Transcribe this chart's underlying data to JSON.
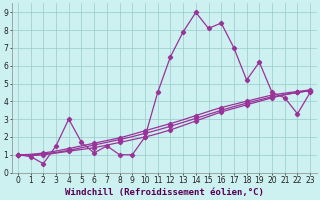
{
  "xlabel": "Windchill (Refroidissement éolien,°C)",
  "background_color": "#cdf0f0",
  "grid_color": "#99cccc",
  "line_color": "#993399",
  "xlim": [
    -0.5,
    23.5
  ],
  "ylim": [
    0,
    9.5
  ],
  "xticks": [
    0,
    1,
    2,
    3,
    4,
    5,
    6,
    7,
    8,
    9,
    10,
    11,
    12,
    13,
    14,
    15,
    16,
    17,
    18,
    19,
    20,
    21,
    22,
    23
  ],
  "yticks": [
    0,
    1,
    2,
    3,
    4,
    5,
    6,
    7,
    8,
    9
  ],
  "line1_x": [
    0,
    1,
    2,
    3,
    4,
    5,
    6,
    7,
    8,
    9,
    10,
    11,
    12,
    13,
    14,
    15,
    16,
    17,
    18,
    19,
    20,
    21,
    22,
    23
  ],
  "line1_y": [
    1.0,
    0.9,
    0.5,
    1.5,
    3.0,
    1.7,
    1.1,
    1.5,
    1.0,
    1.0,
    2.0,
    4.5,
    6.5,
    7.9,
    9.0,
    8.1,
    8.4,
    7.0,
    5.2,
    6.2,
    4.5,
    4.2,
    3.3,
    4.5
  ],
  "line2_x": [
    0,
    2,
    4,
    6,
    8,
    10,
    12,
    14,
    16,
    18,
    20,
    22,
    23
  ],
  "line2_y": [
    1.0,
    1.0,
    1.2,
    1.4,
    1.7,
    2.0,
    2.4,
    2.9,
    3.4,
    3.8,
    4.2,
    4.5,
    4.6
  ],
  "line3_x": [
    0,
    2,
    4,
    6,
    8,
    10,
    12,
    14,
    16,
    18,
    20,
    22,
    23
  ],
  "line3_y": [
    1.0,
    1.05,
    1.25,
    1.55,
    1.85,
    2.2,
    2.6,
    3.05,
    3.5,
    3.9,
    4.25,
    4.5,
    4.6
  ],
  "line4_x": [
    0,
    2,
    4,
    6,
    8,
    10,
    12,
    14,
    16,
    18,
    20,
    22,
    23
  ],
  "line4_y": [
    1.0,
    1.1,
    1.35,
    1.65,
    1.95,
    2.35,
    2.75,
    3.2,
    3.65,
    4.0,
    4.35,
    4.55,
    4.65
  ],
  "xlabel_fontsize": 6.5,
  "tick_fontsize": 5.5
}
